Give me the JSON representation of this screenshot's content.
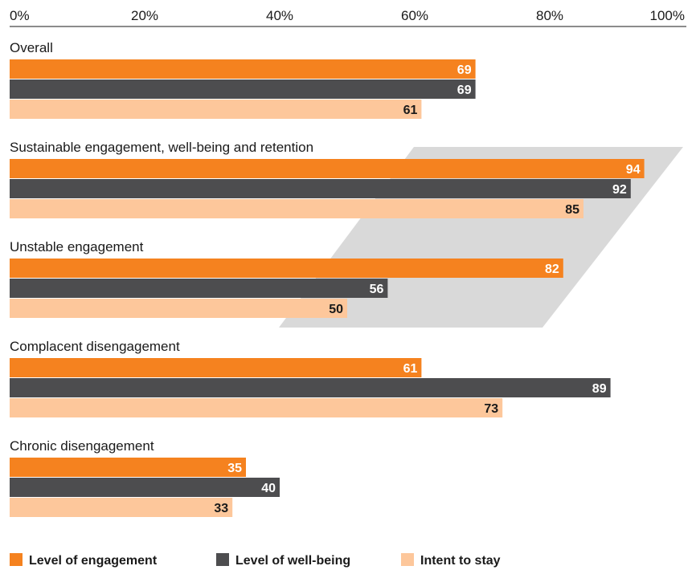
{
  "chart_data": {
    "type": "bar",
    "orientation": "horizontal",
    "xlim": [
      0,
      100
    ],
    "x_ticks": [
      "0%",
      "20%",
      "40%",
      "60%",
      "80%",
      "100%"
    ],
    "categories": [
      "Overall",
      "Sustainable engagement, well-being and retention",
      "Unstable engagement",
      "Complacent disengagement",
      "Chronic disengagement"
    ],
    "series": [
      {
        "name": "Level of engagement",
        "color": "#f5821f",
        "label_color": "#ffffff",
        "values": [
          69,
          94,
          82,
          61,
          35
        ]
      },
      {
        "name": "Level of well-being",
        "color": "#4d4d4f",
        "label_color": "#ffffff",
        "values": [
          69,
          92,
          56,
          89,
          40
        ]
      },
      {
        "name": "Intent to stay",
        "color": "#fdc79b",
        "label_color": "#1a1a1a",
        "values": [
          61,
          85,
          50,
          73,
          33
        ]
      }
    ],
    "legend_position": "bottom-left",
    "highlight_color": "#d9d9d9",
    "grid": false
  }
}
